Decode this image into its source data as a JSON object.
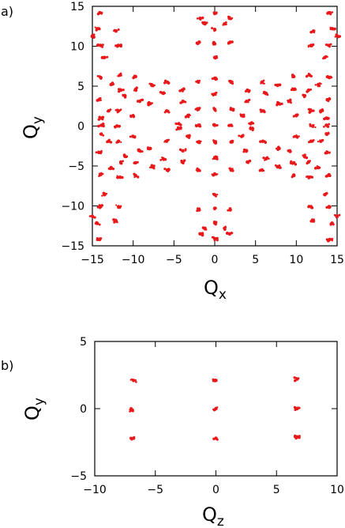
{
  "chart_data": [
    {
      "type": "scatter",
      "panel_label": "a)",
      "xlabel": "Q",
      "xlabel_sub": "x",
      "ylabel": "Q",
      "ylabel_sub": "y",
      "xlim": [
        -15,
        15
      ],
      "ylim": [
        -15,
        15
      ],
      "xticks": [
        -15,
        -10,
        -5,
        0,
        5,
        10,
        15
      ],
      "yticks": [
        -15,
        -10,
        -5,
        0,
        5,
        10,
        15
      ],
      "xtick_labels": [
        "−15",
        "−10",
        "−5",
        "0",
        "5",
        "10",
        "15"
      ],
      "ytick_labels": [
        "−15",
        "−10",
        "−5",
        "0",
        "5",
        "10",
        "15"
      ],
      "grid": false,
      "marker_color": "#e8191a",
      "series": [
        {
          "points": [
            [
              0,
              0.1
            ],
            [
              0,
              2.1
            ],
            [
              0,
              -2.0
            ],
            [
              0,
              4.0
            ],
            [
              0,
              -4.0
            ],
            [
              -2.0,
              0.1
            ],
            [
              2.0,
              0.1
            ],
            [
              -2.0,
              2.1
            ],
            [
              2.0,
              2.1
            ],
            [
              -2.0,
              -2.0
            ],
            [
              2.0,
              -2.0
            ],
            [
              -13.9,
              0.1
            ],
            [
              13.7,
              0.1
            ],
            [
              -13.9,
              1.0
            ],
            [
              13.7,
              1.0
            ],
            [
              -13.9,
              -1.0
            ],
            [
              13.7,
              -1.0
            ],
            [
              -14.2,
              3.3
            ],
            [
              13.8,
              3.3
            ],
            [
              -14.2,
              -3.3
            ],
            [
              13.8,
              -3.3
            ],
            [
              -11.8,
              1.9
            ],
            [
              11.8,
              1.9
            ],
            [
              -11.8,
              -1.9
            ],
            [
              11.8,
              -1.9
            ],
            [
              -12.0,
              0.0
            ],
            [
              12.0,
              0.0
            ],
            [
              -14.0,
              10.1
            ],
            [
              -11.8,
              10.1
            ],
            [
              11.8,
              10.1
            ],
            [
              14.0,
              10.1
            ],
            [
              -14.0,
              -10.1
            ],
            [
              -11.8,
              -10.1
            ],
            [
              11.8,
              -10.1
            ],
            [
              14.0,
              -10.1
            ],
            [
              -14.4,
              12.2
            ],
            [
              -12.1,
              11.9
            ],
            [
              12.1,
              11.9
            ],
            [
              14.4,
              12.2
            ],
            [
              -14.4,
              -12.2
            ],
            [
              -12.1,
              -11.9
            ],
            [
              12.1,
              -11.9
            ],
            [
              14.4,
              -12.2
            ],
            [
              -14.1,
              14.2
            ],
            [
              14.1,
              14.2
            ],
            [
              -14.1,
              -14.2
            ],
            [
              14.1,
              -14.2
            ],
            [
              -13.5,
              8.6
            ],
            [
              13.5,
              8.6
            ],
            [
              -13.5,
              -8.6
            ],
            [
              13.5,
              -8.6
            ],
            [
              -15.0,
              11.3
            ],
            [
              15.0,
              11.3
            ],
            [
              -15.0,
              -11.3
            ],
            [
              15.0,
              -11.3
            ],
            [
              0,
              10.3
            ],
            [
              0,
              -10.3
            ],
            [
              0,
              12.1
            ],
            [
              0,
              -12.1
            ],
            [
              0,
              14.1
            ],
            [
              0,
              -14.1
            ],
            [
              -1.9,
              10.5
            ],
            [
              1.9,
              10.5
            ],
            [
              -1.9,
              -10.5
            ],
            [
              1.9,
              -10.5
            ],
            [
              -1.8,
              13.5
            ],
            [
              1.8,
              13.5
            ],
            [
              -1.8,
              -13.5
            ],
            [
              1.8,
              -13.5
            ],
            [
              -1.2,
              12.8
            ],
            [
              1.2,
              12.8
            ],
            [
              -1.2,
              -12.8
            ],
            [
              1.2,
              -12.8
            ],
            [
              0,
              8.6
            ],
            [
              0,
              -8.6
            ],
            [
              0,
              6.0
            ],
            [
              0,
              -6.0
            ],
            [
              -2.0,
              5.5
            ],
            [
              2.0,
              5.5
            ],
            [
              -2.0,
              -5.5
            ],
            [
              2.0,
              -5.5
            ],
            [
              -5.9,
              1.9
            ],
            [
              5.9,
              1.9
            ],
            [
              -5.9,
              -1.9
            ],
            [
              5.9,
              -1.9
            ],
            [
              -4.4,
              0.3
            ],
            [
              4.4,
              0.3
            ],
            [
              -4.4,
              -0.3
            ],
            [
              4.4,
              -0.3
            ],
            [
              -4.0,
              4.5
            ],
            [
              4.0,
              4.5
            ],
            [
              -4.0,
              -4.5
            ],
            [
              4.0,
              -4.5
            ],
            [
              -3.9,
              3.1
            ],
            [
              3.9,
              3.1
            ],
            [
              -3.9,
              -3.1
            ],
            [
              3.9,
              -3.1
            ],
            [
              -6.3,
              4.1
            ],
            [
              6.3,
              4.1
            ],
            [
              -6.3,
              -4.1
            ],
            [
              6.3,
              -4.1
            ],
            [
              -7.9,
              2.8
            ],
            [
              7.9,
              2.8
            ],
            [
              -7.9,
              -2.8
            ],
            [
              7.9,
              -2.8
            ],
            [
              -7.7,
              5.1
            ],
            [
              7.7,
              5.1
            ],
            [
              -7.7,
              -5.1
            ],
            [
              7.7,
              -5.1
            ],
            [
              -9.2,
              3.1
            ],
            [
              9.2,
              3.1
            ],
            [
              -9.2,
              -3.1
            ],
            [
              9.2,
              -3.1
            ],
            [
              -9.7,
              4.6
            ],
            [
              9.7,
              4.6
            ],
            [
              -9.7,
              -4.6
            ],
            [
              9.7,
              -4.6
            ],
            [
              -9.7,
              6.2
            ],
            [
              9.7,
              6.2
            ],
            [
              -9.7,
              -6.2
            ],
            [
              9.7,
              -6.2
            ],
            [
              -11.6,
              6.4
            ],
            [
              11.6,
              6.4
            ],
            [
              -11.6,
              -6.4
            ],
            [
              11.6,
              -6.4
            ],
            [
              -11.5,
              4.5
            ],
            [
              11.5,
              4.5
            ],
            [
              -11.5,
              -4.5
            ],
            [
              11.5,
              -4.5
            ],
            [
              -12.7,
              5.2
            ],
            [
              12.7,
              5.2
            ],
            [
              -12.7,
              -5.2
            ],
            [
              12.7,
              -5.2
            ],
            [
              -11.0,
              3.8
            ],
            [
              11.0,
              3.8
            ],
            [
              -11.0,
              -3.8
            ],
            [
              11.0,
              -3.8
            ],
            [
              -14.0,
              6.1
            ],
            [
              14.0,
              6.1
            ],
            [
              -14.0,
              -6.1
            ],
            [
              14.0,
              -6.1
            ],
            [
              -10.0,
              1.3
            ],
            [
              10.0,
              1.3
            ],
            [
              -10.0,
              -1.3
            ],
            [
              10.0,
              -1.3
            ],
            [
              -3.3,
              1.3
            ],
            [
              3.3,
              1.3
            ],
            [
              -3.3,
              -1.3
            ],
            [
              3.3,
              -1.3
            ],
            [
              -5.8,
              5.5
            ],
            [
              5.8,
              5.5
            ],
            [
              -5.8,
              -5.5
            ],
            [
              5.8,
              -5.5
            ],
            [
              -13.0,
              1.9
            ],
            [
              13.0,
              1.9
            ],
            [
              -13.0,
              -1.9
            ],
            [
              13.0,
              -1.9
            ]
          ]
        }
      ]
    },
    {
      "type": "scatter",
      "panel_label": "b)",
      "xlabel": "Q",
      "xlabel_sub": "z",
      "ylabel": "Q",
      "ylabel_sub": "y",
      "xlim": [
        -10,
        10
      ],
      "ylim": [
        -5,
        5
      ],
      "xticks": [
        -10,
        -5,
        0,
        5,
        10
      ],
      "yticks": [
        -5,
        0,
        5
      ],
      "xtick_labels": [
        "−10",
        "−5",
        "0",
        "5",
        "10"
      ],
      "ytick_labels": [
        "−5",
        "0",
        "5"
      ],
      "grid": false,
      "marker_color": "#e8191a",
      "series": [
        {
          "points": [
            [
              -6.8,
              2.1
            ],
            [
              0,
              2.1
            ],
            [
              6.7,
              2.2
            ],
            [
              -6.9,
              -0.1
            ],
            [
              0,
              0.0
            ],
            [
              6.7,
              0.0
            ],
            [
              -6.8,
              -2.2
            ],
            [
              0,
              -2.2
            ],
            [
              6.7,
              -2.1
            ]
          ]
        }
      ]
    }
  ]
}
